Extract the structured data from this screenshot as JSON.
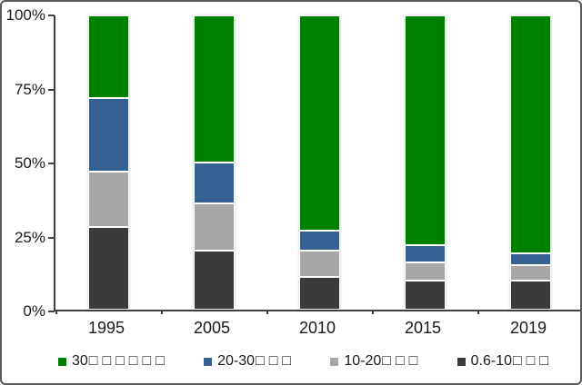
{
  "chart_data": {
    "type": "bar",
    "subtype": "stacked-100-percent",
    "title": "",
    "xlabel": "",
    "ylabel": "",
    "categories": [
      "1995",
      "2005",
      "2010",
      "2015",
      "2019"
    ],
    "series": [
      {
        "name": "0.6-10□□□",
        "prefix": "0.6-10",
        "boxes": "□□□",
        "color": "#3B3B3B",
        "values": [
          28,
          20,
          11,
          10,
          10
        ]
      },
      {
        "name": "10-20□□□",
        "prefix": "10-20",
        "boxes": "□□□",
        "color": "#A6A6A6",
        "values": [
          19,
          16,
          9,
          6,
          5
        ]
      },
      {
        "name": "20-30□□□",
        "prefix": "20-30",
        "boxes": "□□□",
        "color": "#366092",
        "values": [
          25,
          14,
          7,
          6,
          4
        ]
      },
      {
        "name": "30□□□□□□",
        "prefix": "30",
        "boxes": "□□□□□□",
        "color": "#008000",
        "values": [
          28,
          50,
          73,
          78,
          81
        ]
      }
    ],
    "stack_order_bottom_to_top": [
      "0.6-10□□□",
      "10-20□□□",
      "20-30□□□",
      "30□□□□□□"
    ],
    "y_axis": {
      "min": 0,
      "max": 100,
      "ticks": [
        "0%",
        "25%",
        "50%",
        "75%",
        "100%"
      ]
    },
    "grid": false,
    "legend_position": "bottom",
    "legend_order": [
      "30□□□□□□",
      "20-30□□□",
      "10-20□□□",
      "0.6-10□□□"
    ]
  },
  "colors": {
    "background": "#ffffff",
    "border": "#595959",
    "axis": "#404040",
    "text": "#1a1a1a",
    "segment_outline": "#ffffff"
  }
}
